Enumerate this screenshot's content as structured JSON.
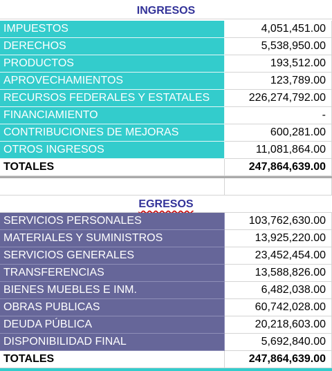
{
  "ingresos": {
    "title": "INGRESOS",
    "rows": [
      {
        "label": "IMPUESTOS",
        "amount": "4,051,451.00"
      },
      {
        "label": "DERECHOS",
        "amount": "5,538,950.00"
      },
      {
        "label": "PRODUCTOS",
        "amount": "193,512.00"
      },
      {
        "label": "APROVECHAMIENTOS",
        "amount": "123,789.00"
      },
      {
        "label": "RECURSOS FEDERALES Y ESTATALES",
        "amount": "226,274,792.00"
      },
      {
        "label": "FINANCIAMIENTO",
        "amount": "-"
      },
      {
        "label": "CONTRIBUCIONES DE MEJORAS",
        "amount": "600,281.00"
      },
      {
        "label": "OTROS INGRESOS",
        "amount": "11,081,864.00"
      }
    ],
    "total": {
      "label": "TOTALES",
      "amount": "247,864,639.00"
    }
  },
  "egresos": {
    "title": "EGRESOS",
    "rows": [
      {
        "label": "SERVICIOS PERSONALES",
        "amount": "103,762,630.00"
      },
      {
        "label": "MATERIALES Y SUMINISTROS",
        "amount": "13,925,220.00"
      },
      {
        "label": "SERVICIOS GENERALES",
        "amount": "23,452,454.00"
      },
      {
        "label": "TRANSFERENCIAS",
        "amount": "13,588,826.00"
      },
      {
        "label": "BIENES MUEBLES E INM.",
        "amount": "6,482,038.00"
      },
      {
        "label": "OBRAS PUBLICAS",
        "amount": "60,742,028.00"
      },
      {
        "label": "DEUDA PÚBLICA",
        "amount": "20,218,603.00"
      },
      {
        "label": "DISPONIBILIDAD FINAL",
        "amount": "5,692,840.00"
      }
    ],
    "total": {
      "label": "TOTALES",
      "amount": "247,864,639.00"
    }
  }
}
